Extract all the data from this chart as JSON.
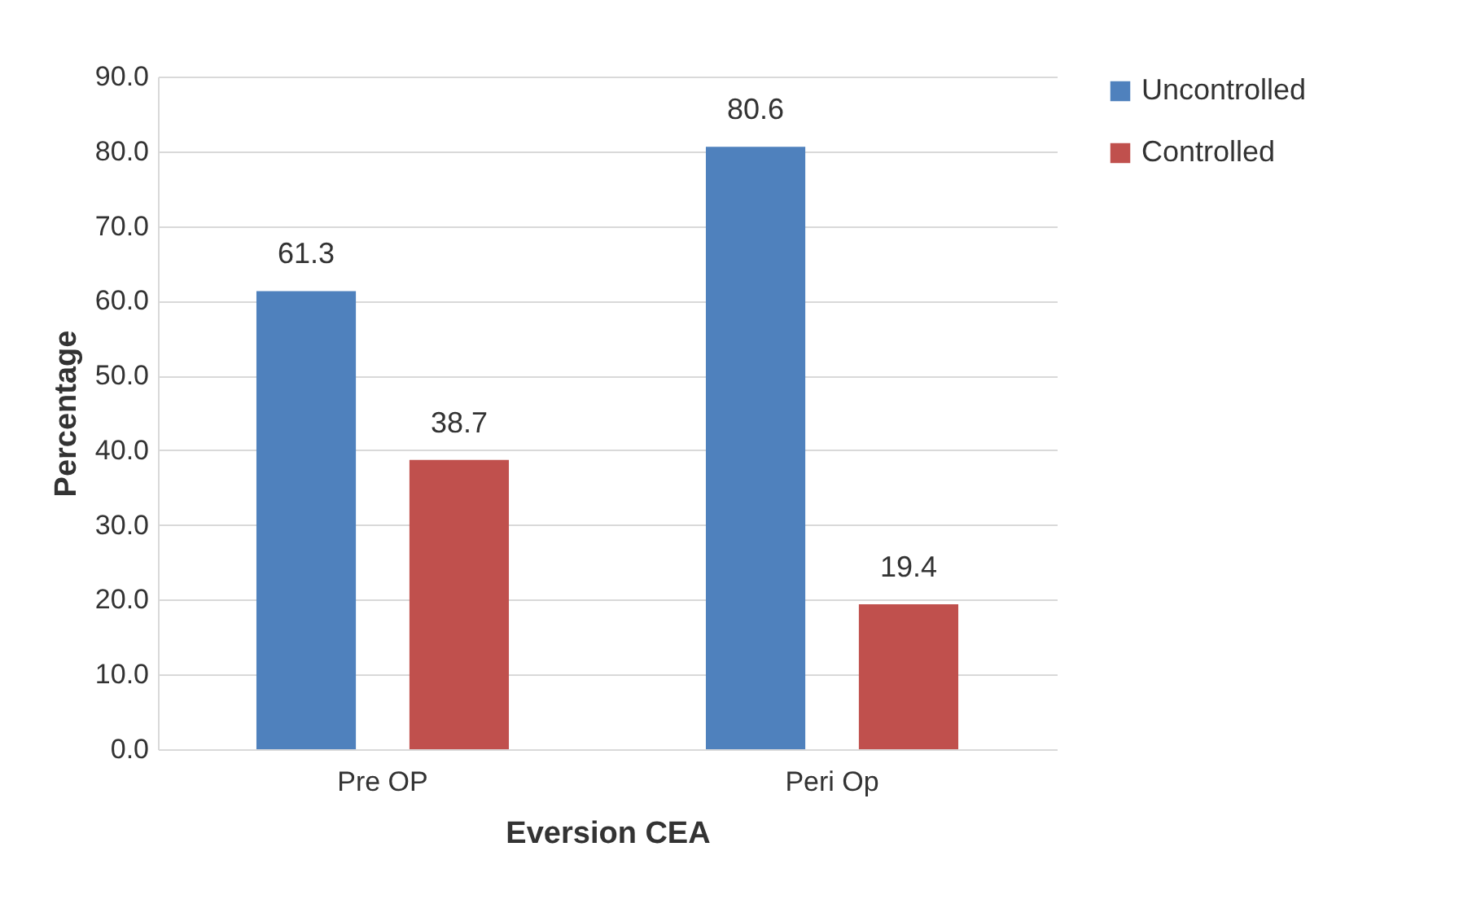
{
  "chart_data": {
    "type": "bar",
    "xlabel": "Eversion CEA",
    "ylabel": "Percentage",
    "categories": [
      "Pre OP",
      "Peri Op"
    ],
    "series": [
      {
        "name": "Uncontrolled",
        "color": "#4f81bd",
        "values": [
          61.3,
          80.6
        ]
      },
      {
        "name": "Controlled",
        "color": "#c0504d",
        "values": [
          38.7,
          19.4
        ]
      }
    ],
    "ylim": [
      0,
      90
    ],
    "yticks": [
      {
        "value": 0,
        "label": "0.0"
      },
      {
        "value": 10,
        "label": "10.0"
      },
      {
        "value": 20,
        "label": "20.0"
      },
      {
        "value": 30,
        "label": "30.0"
      },
      {
        "value": 40,
        "label": "40.0"
      },
      {
        "value": 50,
        "label": "50.0"
      },
      {
        "value": 60,
        "label": "60.0"
      },
      {
        "value": 70,
        "label": "70.0"
      },
      {
        "value": 80,
        "label": "80.0"
      },
      {
        "value": 90,
        "label": "90.0"
      }
    ],
    "grid": "y",
    "legend": "right",
    "data_labels": true
  }
}
